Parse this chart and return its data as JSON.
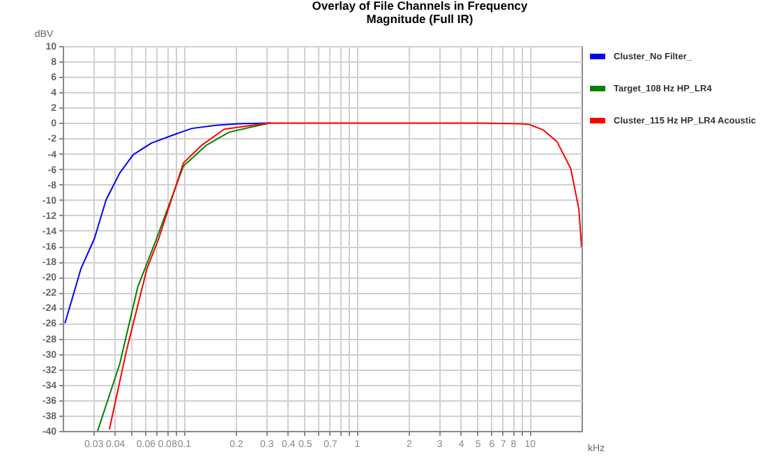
{
  "chart_data": {
    "type": "line",
    "title": "Overlay of File Channels in Frequency",
    "subtitle": "Magnitude (Full IR)",
    "xlabel": "kHz",
    "ylabel": "dBV",
    "log": "x",
    "grid": true,
    "legend": "top right",
    "xlim": [
      0.02,
      20
    ],
    "ylim": [
      -40,
      10
    ],
    "xticks": [
      0.03,
      0.04,
      {
        "value": 0.05,
        "label": null
      },
      0.06,
      {
        "value": 0.07,
        "label": null
      },
      0.08,
      {
        "value": 0.09,
        "label": null
      },
      0.1,
      0.2,
      0.3,
      0.4,
      0.5,
      {
        "value": 0.6,
        "label": null
      },
      0.7,
      {
        "value": 0.8,
        "label": null
      },
      {
        "value": 0.9,
        "label": null
      },
      1,
      2,
      3,
      4,
      5,
      6,
      7,
      8,
      {
        "value": 9,
        "label": null
      },
      10
    ],
    "yticks": [
      10,
      8,
      6,
      4,
      2,
      0,
      -2,
      -4,
      -6,
      -8,
      -10,
      -12,
      -14,
      -16,
      -18,
      -20,
      -22,
      -24,
      -26,
      -28,
      -30,
      -32,
      -34,
      -36,
      -38,
      -40
    ],
    "series": [
      {
        "name": "Cluster_No Filter_",
        "color": "#0000ff",
        "x": [
          0.0206,
          0.0255,
          0.0305,
          0.0356,
          0.0427,
          0.0512,
          0.0652,
          0.0883,
          0.112,
          0.153,
          0.206,
          0.316
        ],
        "values": [
          -26,
          -18.9,
          -15,
          -10,
          -6.5,
          -4.1,
          -2.6,
          -1.5,
          -0.7,
          -0.3,
          -0.1,
          0
        ]
      },
      {
        "name": "Target_108 Hz HP_LR4",
        "color": "#008000",
        "x": [
          0.0318,
          0.0427,
          0.0543,
          0.0693,
          0.0997,
          0.135,
          0.183,
          0.248,
          0.316
        ],
        "values": [
          -40,
          -31.3,
          -21.3,
          -15.2,
          -5.6,
          -2.9,
          -1.2,
          -0.5,
          0
        ]
      },
      {
        "name": "Cluster_115 Hz HP_LR4 Acoustic",
        "color": "#ff0000",
        "x": [
          0.0372,
          0.0468,
          0.0614,
          0.0713,
          0.0997,
          0.127,
          0.172,
          0.248,
          0.316,
          1,
          5,
          8.9,
          10,
          12,
          14.4,
          17.3,
          19.3,
          20
        ],
        "values": [
          -39.8,
          -29.5,
          -18.9,
          -15.2,
          -5.2,
          -2.9,
          -0.8,
          -0.3,
          0,
          0,
          0,
          -0.1,
          -0.2,
          -0.9,
          -2.4,
          -5.9,
          -11.2,
          -16.2
        ]
      }
    ]
  }
}
